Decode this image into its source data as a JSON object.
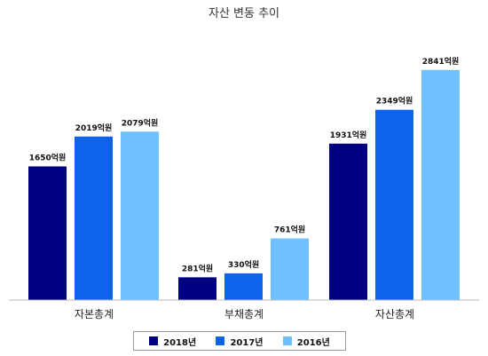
{
  "chart_data": {
    "type": "bar",
    "title": "자산 변동 추이",
    "categories": [
      "자본총계",
      "부채총계",
      "자산총계"
    ],
    "series": [
      {
        "name": "2018년",
        "color": "#000080",
        "values": [
          1650,
          281,
          1931
        ],
        "labels": [
          "1650억원",
          "281억원",
          "1931억원"
        ]
      },
      {
        "name": "2017년",
        "color": "#0f62ea",
        "values": [
          2019,
          330,
          2349
        ],
        "labels": [
          "2019억원",
          "330억원",
          "2349억원"
        ]
      },
      {
        "name": "2016년",
        "color": "#6ec0ff",
        "values": [
          2079,
          761,
          2841
        ],
        "labels": [
          "2079억원",
          "761억원",
          "2841억원"
        ]
      }
    ],
    "ylim": [
      0,
      3200
    ],
    "grid": false,
    "legend_position": "bottom"
  }
}
